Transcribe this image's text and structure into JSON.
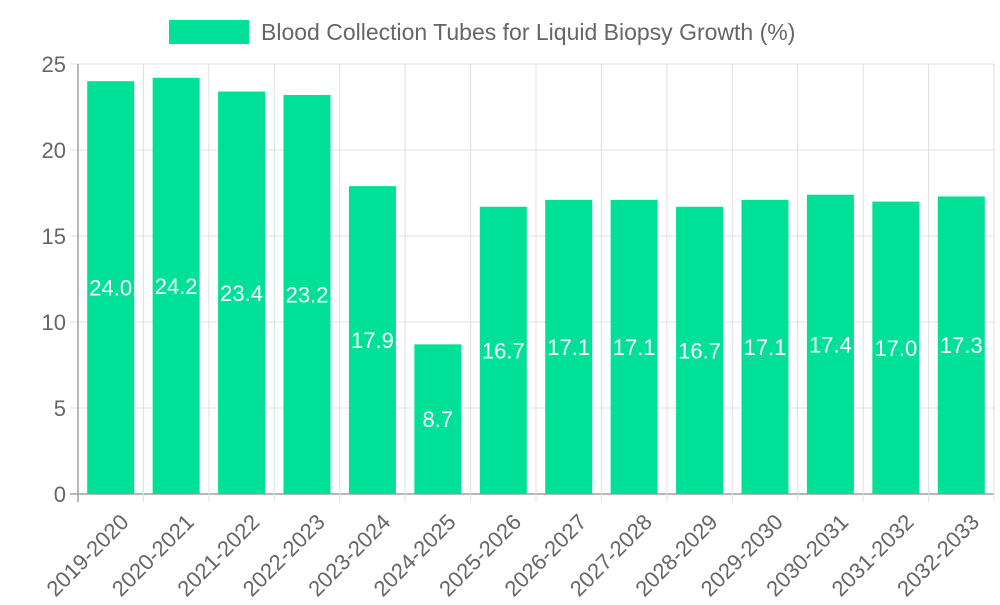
{
  "chart_data": {
    "type": "bar",
    "title": "",
    "legend": {
      "label": "Blood Collection Tubes for Liquid Biopsy Growth (%)",
      "position": "top"
    },
    "categories": [
      "2019-2020",
      "2020-2021",
      "2021-2022",
      "2022-2023",
      "2023-2024",
      "2024-2025",
      "2025-2026",
      "2026-2027",
      "2027-2028",
      "2028-2029",
      "2029-2030",
      "2030-2031",
      "2031-2032",
      "2032-2033"
    ],
    "series": [
      {
        "name": "Blood Collection Tubes for Liquid Biopsy Growth (%)",
        "values": [
          24.0,
          24.2,
          23.4,
          23.2,
          17.9,
          8.7,
          16.7,
          17.1,
          17.1,
          16.7,
          17.1,
          17.4,
          17.0,
          17.3
        ]
      }
    ],
    "data_labels": [
      "24.0",
      "24.2",
      "23.4",
      "23.2",
      "17.9",
      "8.7",
      "16.7",
      "17.1",
      "17.1",
      "16.7",
      "17.1",
      "17.4",
      "17.0",
      "17.3"
    ],
    "xlabel": "",
    "ylabel": "",
    "ylim": [
      0,
      25
    ],
    "yticks": [
      "0",
      "5",
      "10",
      "15",
      "20",
      "25"
    ],
    "grid": true,
    "colors": {
      "bar": "#00e096",
      "grid": "#e0e0e0",
      "axis": "#a0a0a0",
      "text": "#666666",
      "label": "#ffffff"
    }
  }
}
